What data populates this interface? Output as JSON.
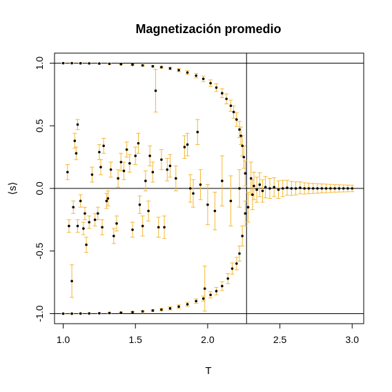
{
  "chart_data": {
    "type": "scatter",
    "title": "Magnetización promedio",
    "xlabel": "T",
    "ylabel": "⟨s⟩",
    "xlim": [
      0.94,
      3.08
    ],
    "ylim": [
      -1.08,
      1.08
    ],
    "x_ticks": [
      {
        "value": 1.0,
        "label": "1.0"
      },
      {
        "value": 1.5,
        "label": "1.5"
      },
      {
        "value": 2.0,
        "label": "2.0"
      },
      {
        "value": 2.5,
        "label": "2.5"
      },
      {
        "value": 3.0,
        "label": "3.0"
      }
    ],
    "y_ticks": [
      {
        "value": -1.0,
        "label": "-1.0"
      },
      {
        "value": -0.5,
        "label": "-0.5"
      },
      {
        "value": 0.0,
        "label": "0.0"
      },
      {
        "value": 0.5,
        "label": "0.5"
      },
      {
        "value": 1.0,
        "label": "1.0"
      }
    ],
    "reference_lines": {
      "horizontal": [
        1.0,
        0.0,
        -1.0
      ],
      "vertical": [
        2.2692
      ]
    },
    "grid": false,
    "legend": "none",
    "colors": {
      "points": "#000000",
      "error_bars": "#F5B730",
      "reference": "#000000"
    },
    "series": [
      {
        "values": [
          {
            "x": 1.0,
            "y": 1.0,
            "e": 0.002
          },
          {
            "x": 1.06,
            "y": 1.0,
            "e": 0.002
          },
          {
            "x": 1.12,
            "y": 0.999,
            "e": 0.002
          },
          {
            "x": 1.18,
            "y": 0.998,
            "e": 0.003
          },
          {
            "x": 1.25,
            "y": 0.997,
            "e": 0.003
          },
          {
            "x": 1.32,
            "y": 0.995,
            "e": 0.004
          },
          {
            "x": 1.4,
            "y": 0.992,
            "e": 0.004
          },
          {
            "x": 1.48,
            "y": 0.988,
            "e": 0.005
          },
          {
            "x": 1.55,
            "y": 0.982,
            "e": 0.006
          },
          {
            "x": 1.62,
            "y": 0.975,
            "e": 0.007
          },
          {
            "x": 1.68,
            "y": 0.968,
            "e": 0.008
          },
          {
            "x": 1.74,
            "y": 0.958,
            "e": 0.01
          },
          {
            "x": 1.8,
            "y": 0.944,
            "e": 0.012
          },
          {
            "x": 1.86,
            "y": 0.925,
            "e": 0.015
          },
          {
            "x": 1.92,
            "y": 0.9,
            "e": 0.018
          },
          {
            "x": 1.97,
            "y": 0.875,
            "e": 0.022
          },
          {
            "x": 2.02,
            "y": 0.84,
            "e": 0.026
          },
          {
            "x": 2.06,
            "y": 0.805,
            "e": 0.03
          },
          {
            "x": 2.1,
            "y": 0.76,
            "e": 0.035
          },
          {
            "x": 2.13,
            "y": 0.715,
            "e": 0.04
          },
          {
            "x": 2.16,
            "y": 0.66,
            "e": 0.045
          },
          {
            "x": 2.18,
            "y": 0.61,
            "e": 0.05
          },
          {
            "x": 2.2,
            "y": 0.55,
            "e": 0.055
          },
          {
            "x": 2.22,
            "y": 0.47,
            "e": 0.065
          },
          {
            "x": 2.23,
            "y": 0.42,
            "e": 0.07
          },
          {
            "x": 2.24,
            "y": 0.34,
            "e": 0.08
          },
          {
            "x": 2.25,
            "y": 0.25,
            "e": 0.09
          },
          {
            "x": 2.26,
            "y": 0.12,
            "e": 0.1
          },
          {
            "x": 1.0,
            "y": -1.0,
            "e": 0.002
          },
          {
            "x": 1.06,
            "y": -1.0,
            "e": 0.002
          },
          {
            "x": 1.12,
            "y": -0.999,
            "e": 0.002
          },
          {
            "x": 1.18,
            "y": -0.998,
            "e": 0.003
          },
          {
            "x": 1.25,
            "y": -0.997,
            "e": 0.003
          },
          {
            "x": 1.32,
            "y": -0.995,
            "e": 0.004
          },
          {
            "x": 1.4,
            "y": -0.992,
            "e": 0.004
          },
          {
            "x": 1.48,
            "y": -0.988,
            "e": 0.005
          },
          {
            "x": 1.55,
            "y": -0.982,
            "e": 0.006
          },
          {
            "x": 1.62,
            "y": -0.975,
            "e": 0.007
          },
          {
            "x": 1.68,
            "y": -0.968,
            "e": 0.01
          },
          {
            "x": 1.74,
            "y": -0.958,
            "e": 0.012
          },
          {
            "x": 1.8,
            "y": -0.944,
            "e": 0.014
          },
          {
            "x": 1.86,
            "y": -0.925,
            "e": 0.016
          },
          {
            "x": 1.92,
            "y": -0.9,
            "e": 0.018
          },
          {
            "x": 1.97,
            "y": -0.88,
            "e": 0.02
          },
          {
            "x": 2.02,
            "y": -0.85,
            "e": 0.025
          },
          {
            "x": 2.06,
            "y": -0.82,
            "e": 0.03
          },
          {
            "x": 2.1,
            "y": -0.78,
            "e": 0.035
          },
          {
            "x": 2.14,
            "y": -0.72,
            "e": 0.04
          },
          {
            "x": 2.17,
            "y": -0.64,
            "e": 0.045
          },
          {
            "x": 2.2,
            "y": -0.6,
            "e": 0.05
          },
          {
            "x": 2.22,
            "y": -0.52,
            "e": 0.06
          },
          {
            "x": 2.24,
            "y": -0.38,
            "e": 0.08
          },
          {
            "x": 2.26,
            "y": -0.2,
            "e": 0.1
          },
          {
            "x": 1.03,
            "y": 0.13,
            "e": 0.06
          },
          {
            "x": 1.04,
            "y": -0.3,
            "e": 0.05
          },
          {
            "x": 1.06,
            "y": -0.74,
            "e": 0.13
          },
          {
            "x": 1.07,
            "y": -0.15,
            "e": 0.05
          },
          {
            "x": 1.08,
            "y": 0.38,
            "e": 0.06
          },
          {
            "x": 1.09,
            "y": 0.28,
            "e": 0.05
          },
          {
            "x": 1.1,
            "y": 0.51,
            "e": 0.04
          },
          {
            "x": 1.1,
            "y": -0.3,
            "e": 0.05
          },
          {
            "x": 1.12,
            "y": -0.1,
            "e": 0.05
          },
          {
            "x": 1.14,
            "y": -0.32,
            "e": 0.05
          },
          {
            "x": 1.15,
            "y": -0.2,
            "e": 0.05
          },
          {
            "x": 1.16,
            "y": -0.45,
            "e": 0.06
          },
          {
            "x": 1.18,
            "y": -0.27,
            "e": 0.05
          },
          {
            "x": 1.2,
            "y": 0.11,
            "e": 0.06
          },
          {
            "x": 1.22,
            "y": -0.25,
            "e": 0.05
          },
          {
            "x": 1.24,
            "y": -0.2,
            "e": 0.05
          },
          {
            "x": 1.25,
            "y": 0.29,
            "e": 0.06
          },
          {
            "x": 1.26,
            "y": 0.17,
            "e": 0.06
          },
          {
            "x": 1.27,
            "y": -0.31,
            "e": 0.06
          },
          {
            "x": 1.28,
            "y": 0.34,
            "e": 0.06
          },
          {
            "x": 1.3,
            "y": -0.1,
            "e": 0.06
          },
          {
            "x": 1.31,
            "y": -0.08,
            "e": 0.06
          },
          {
            "x": 1.33,
            "y": 0.15,
            "e": 0.06
          },
          {
            "x": 1.35,
            "y": -0.38,
            "e": 0.06
          },
          {
            "x": 1.37,
            "y": -0.28,
            "e": 0.06
          },
          {
            "x": 1.38,
            "y": 0.08,
            "e": 0.07
          },
          {
            "x": 1.4,
            "y": 0.21,
            "e": 0.07
          },
          {
            "x": 1.42,
            "y": 0.14,
            "e": 0.07
          },
          {
            "x": 1.44,
            "y": 0.31,
            "e": 0.06
          },
          {
            "x": 1.46,
            "y": 0.2,
            "e": 0.07
          },
          {
            "x": 1.48,
            "y": -0.33,
            "e": 0.06
          },
          {
            "x": 1.5,
            "y": 0.26,
            "e": 0.07
          },
          {
            "x": 1.52,
            "y": 0.36,
            "e": 0.08
          },
          {
            "x": 1.53,
            "y": -0.13,
            "e": 0.07
          },
          {
            "x": 1.55,
            "y": -0.3,
            "e": 0.08
          },
          {
            "x": 1.57,
            "y": 0.06,
            "e": 0.08
          },
          {
            "x": 1.59,
            "y": -0.18,
            "e": 0.08
          },
          {
            "x": 1.6,
            "y": 0.26,
            "e": 0.08
          },
          {
            "x": 1.62,
            "y": 0.13,
            "e": 0.08
          },
          {
            "x": 1.64,
            "y": 0.78,
            "e": 0.17
          },
          {
            "x": 1.66,
            "y": -0.31,
            "e": 0.08
          },
          {
            "x": 1.68,
            "y": 0.23,
            "e": 0.08
          },
          {
            "x": 1.7,
            "y": -0.31,
            "e": 0.09
          },
          {
            "x": 1.72,
            "y": 0.15,
            "e": 0.09
          },
          {
            "x": 1.74,
            "y": 0.18,
            "e": 0.09
          },
          {
            "x": 1.78,
            "y": 0.08,
            "e": 0.1
          },
          {
            "x": 1.84,
            "y": 0.33,
            "e": 0.09
          },
          {
            "x": 1.86,
            "y": 0.35,
            "e": 0.09
          },
          {
            "x": 1.88,
            "y": 0.0,
            "e": 0.11
          },
          {
            "x": 1.9,
            "y": -0.04,
            "e": 0.11
          },
          {
            "x": 1.93,
            "y": 0.45,
            "e": 0.1
          },
          {
            "x": 1.95,
            "y": 0.03,
            "e": 0.12
          },
          {
            "x": 1.98,
            "y": -0.8,
            "e": 0.18
          },
          {
            "x": 2.0,
            "y": -0.13,
            "e": 0.16
          },
          {
            "x": 2.05,
            "y": -0.18,
            "e": 0.15
          },
          {
            "x": 2.1,
            "y": 0.06,
            "e": 0.2
          },
          {
            "x": 2.16,
            "y": -0.1,
            "e": 0.2
          },
          {
            "x": 2.22,
            "y": 0.0,
            "e": 0.15
          },
          {
            "x": 2.28,
            "y": -0.15,
            "e": 0.12
          },
          {
            "x": 2.3,
            "y": 0.08,
            "e": 0.13
          },
          {
            "x": 2.31,
            "y": -0.05,
            "e": 0.12
          },
          {
            "x": 2.32,
            "y": 0.02,
            "e": 0.11
          },
          {
            "x": 2.34,
            "y": -0.01,
            "e": 0.1
          },
          {
            "x": 2.36,
            "y": 0.03,
            "e": 0.095
          },
          {
            "x": 2.38,
            "y": -0.02,
            "e": 0.09
          },
          {
            "x": 2.4,
            "y": 0.01,
            "e": 0.085
          },
          {
            "x": 2.43,
            "y": 0.0,
            "e": 0.08
          },
          {
            "x": 2.46,
            "y": 0.01,
            "e": 0.075
          },
          {
            "x": 2.49,
            "y": -0.01,
            "e": 0.07
          },
          {
            "x": 2.52,
            "y": 0.0,
            "e": 0.065
          },
          {
            "x": 2.55,
            "y": 0.005,
            "e": 0.06
          },
          {
            "x": 2.58,
            "y": 0.0,
            "e": 0.056
          },
          {
            "x": 2.61,
            "y": 0.0,
            "e": 0.052
          },
          {
            "x": 2.64,
            "y": 0.005,
            "e": 0.048
          },
          {
            "x": 2.67,
            "y": 0.0,
            "e": 0.045
          },
          {
            "x": 2.7,
            "y": 0.0,
            "e": 0.042
          },
          {
            "x": 2.73,
            "y": 0.0,
            "e": 0.04
          },
          {
            "x": 2.76,
            "y": 0.0,
            "e": 0.038
          },
          {
            "x": 2.79,
            "y": 0.0,
            "e": 0.036
          },
          {
            "x": 2.82,
            "y": 0.0,
            "e": 0.034
          },
          {
            "x": 2.85,
            "y": 0.0,
            "e": 0.032
          },
          {
            "x": 2.88,
            "y": 0.0,
            "e": 0.03
          },
          {
            "x": 2.91,
            "y": 0.0,
            "e": 0.029
          },
          {
            "x": 2.94,
            "y": 0.0,
            "e": 0.028
          },
          {
            "x": 2.97,
            "y": 0.0,
            "e": 0.027
          },
          {
            "x": 3.0,
            "y": 0.0,
            "e": 0.026
          }
        ]
      }
    ]
  }
}
